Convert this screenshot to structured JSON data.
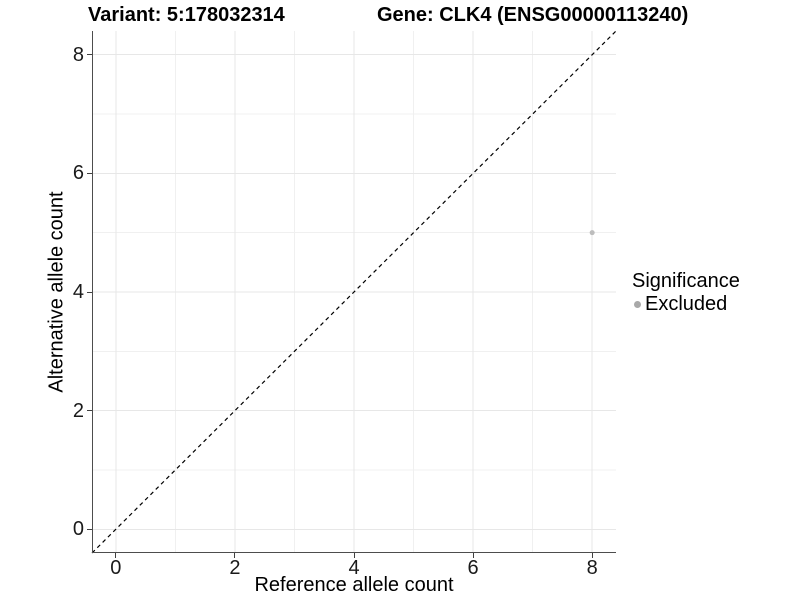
{
  "chart_data": {
    "type": "scatter",
    "title_left": "Variant: 5:178032314",
    "title_right": "Gene: CLK4 (ENSG00000113240)",
    "xlabel": "Reference allele count",
    "ylabel": "Alternative allele count",
    "xlim": [
      -0.4,
      8.4
    ],
    "ylim": [
      -0.4,
      8.4
    ],
    "x_ticks": [
      0,
      2,
      4,
      6,
      8
    ],
    "y_ticks": [
      0,
      2,
      4,
      6,
      8
    ],
    "x_minor_gridlines": [
      1,
      3,
      5,
      7
    ],
    "y_minor_gridlines": [
      1,
      3,
      5,
      7
    ],
    "grid": "on",
    "identity_line": {
      "style": "dashed",
      "from": [
        -0.4,
        -0.4
      ],
      "to": [
        8.4,
        8.4
      ],
      "color": "#000000"
    },
    "series": [
      {
        "name": "Excluded",
        "color": "#bdbdbd",
        "point_radius": 2.5,
        "points": [
          {
            "x": 8,
            "y": 5
          }
        ]
      }
    ],
    "legend": {
      "title": "Significance",
      "position": "right",
      "items": [
        {
          "label": "Excluded",
          "color": "#a9a9a9"
        }
      ]
    },
    "colors": {
      "grid_major": "#e7e7e7",
      "grid_minor": "#f0f0f0",
      "axis_line": "#4d4d4d",
      "panel_background": "#ffffff"
    }
  }
}
